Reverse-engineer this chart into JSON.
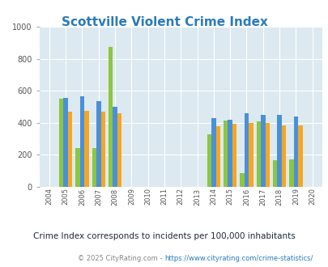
{
  "title": "Scottville Violent Crime Index",
  "years": [
    2004,
    2005,
    2006,
    2007,
    2008,
    2009,
    2010,
    2011,
    2012,
    2013,
    2014,
    2015,
    2016,
    2017,
    2018,
    2019,
    2020
  ],
  "scottville": [
    0,
    550,
    240,
    240,
    875,
    0,
    0,
    0,
    0,
    0,
    330,
    415,
    85,
    410,
    165,
    170,
    0
  ],
  "michigan": [
    0,
    555,
    565,
    535,
    500,
    0,
    0,
    0,
    0,
    0,
    428,
    418,
    458,
    452,
    452,
    438,
    0
  ],
  "national": [
    0,
    468,
    475,
    468,
    458,
    0,
    0,
    0,
    0,
    0,
    378,
    395,
    400,
    398,
    383,
    383,
    0
  ],
  "scottville_color": "#8dc63f",
  "michigan_color": "#4a90d9",
  "national_color": "#f5a623",
  "bg_color": "#dce9f0",
  "ylim": [
    0,
    1000
  ],
  "yticks": [
    0,
    200,
    400,
    600,
    800,
    1000
  ],
  "subtitle": "Crime Index corresponds to incidents per 100,000 inhabitants",
  "footer_pre": "© 2025 CityRating.com - ",
  "footer_url": "https://www.cityrating.com/crime-statistics/",
  "title_color": "#2b7bba",
  "subtitle_color": "#1a2a3a",
  "footer_color": "#888888",
  "footer_url_color": "#2b7bba",
  "bar_width": 0.27
}
